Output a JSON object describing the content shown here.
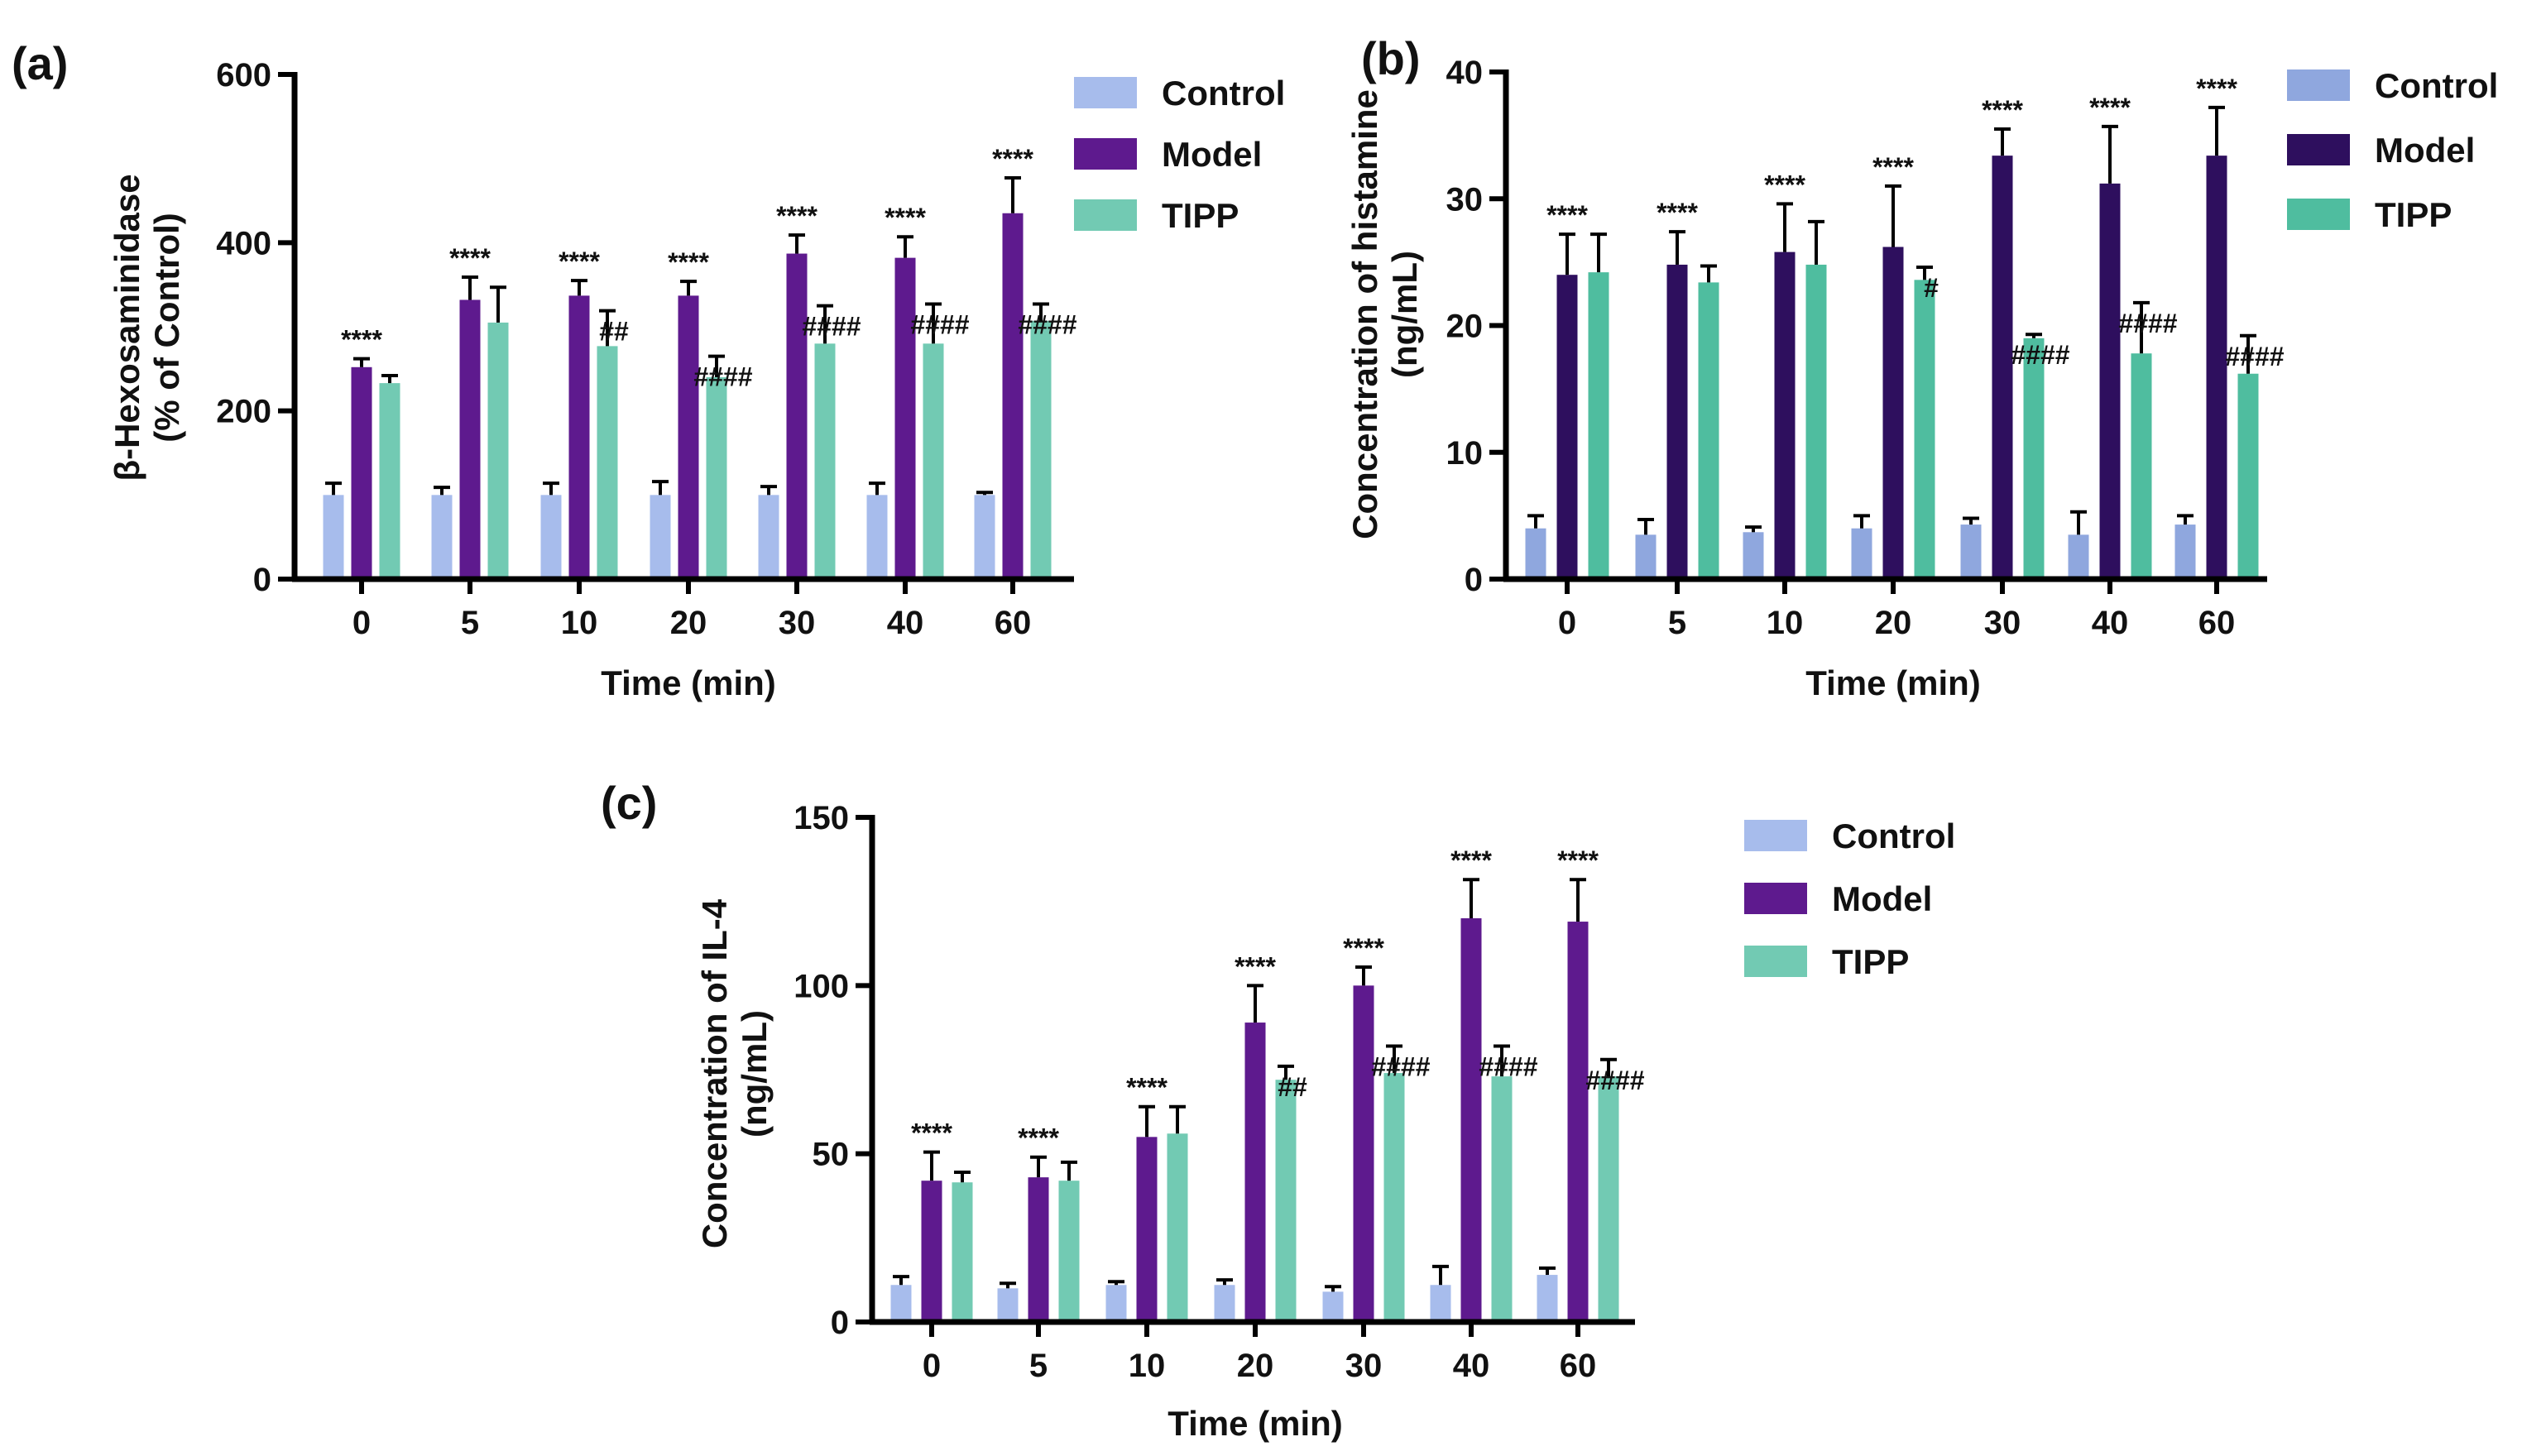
{
  "colors": {
    "panel_a": {
      "Control": "#a7bcec",
      "Model": "#5e1a8e",
      "TIPP": "#72cab3"
    },
    "panel_b": {
      "Control": "#8fa7de",
      "Model": "#2e0f5e",
      "TIPP": "#4fbd9f"
    },
    "panel_c": {
      "Control": "#a7bcec",
      "Model": "#5e1a8e",
      "TIPP": "#72cab3"
    }
  },
  "chart_data": [
    {
      "panel": "(a)",
      "type": "bar",
      "title": "",
      "xlabel": "Time (min)",
      "ylabel_lines": [
        "β-Hexosaminidase",
        "(% of Control)"
      ],
      "ylim": [
        0,
        600
      ],
      "yticks": [
        0,
        200,
        400,
        600
      ],
      "categories": [
        "0",
        "5",
        "10",
        "20",
        "30",
        "40",
        "60"
      ],
      "series": [
        {
          "name": "Control",
          "values": [
            100,
            100,
            100,
            100,
            100,
            100,
            100
          ],
          "errors": [
            14,
            9,
            14,
            16,
            10,
            14,
            3
          ]
        },
        {
          "name": "Model",
          "values": [
            252,
            332,
            337,
            337,
            387,
            382,
            435
          ],
          "errors": [
            10,
            27,
            18,
            17,
            22,
            25,
            42
          ]
        },
        {
          "name": "TIPP",
          "values": [
            233,
            305,
            277,
            240,
            280,
            280,
            307
          ],
          "errors": [
            9,
            42,
            42,
            25,
            45,
            47,
            20
          ]
        }
      ],
      "annotations": [
        {
          "category": "0",
          "series": "Model",
          "text": "****"
        },
        {
          "category": "5",
          "series": "Model",
          "text": "****"
        },
        {
          "category": "10",
          "series": "Model",
          "text": "****"
        },
        {
          "category": "10",
          "series": "TIPP",
          "text": "##"
        },
        {
          "category": "20",
          "series": "Model",
          "text": "****"
        },
        {
          "category": "20",
          "series": "TIPP",
          "text": "####"
        },
        {
          "category": "30",
          "series": "Model",
          "text": "****"
        },
        {
          "category": "30",
          "series": "TIPP",
          "text": "####"
        },
        {
          "category": "40",
          "series": "Model",
          "text": "****"
        },
        {
          "category": "40",
          "series": "TIPP",
          "text": "####"
        },
        {
          "category": "60",
          "series": "Model",
          "text": "****"
        },
        {
          "category": "60",
          "series": "TIPP",
          "text": "####"
        }
      ],
      "legend": [
        "Control",
        "Model",
        "TIPP"
      ]
    },
    {
      "panel": "(b)",
      "type": "bar",
      "title": "",
      "xlabel": "Time (min)",
      "ylabel_lines": [
        "Concentration of histamine",
        "(ng/mL)"
      ],
      "ylim": [
        0,
        40
      ],
      "yticks": [
        0,
        10,
        20,
        30,
        40
      ],
      "categories": [
        "0",
        "5",
        "10",
        "20",
        "30",
        "40",
        "60"
      ],
      "series": [
        {
          "name": "Control",
          "values": [
            4,
            3.5,
            3.7,
            4,
            4.3,
            3.5,
            4.3
          ],
          "errors": [
            1,
            1.2,
            0.4,
            1,
            0.5,
            1.8,
            0.7
          ]
        },
        {
          "name": "Model",
          "values": [
            24,
            24.8,
            25.8,
            26.2,
            33.4,
            31.2,
            33.4
          ],
          "errors": [
            3.2,
            2.6,
            3.8,
            4.8,
            2.1,
            4.5,
            3.8
          ]
        },
        {
          "name": "TIPP",
          "values": [
            24.2,
            23.4,
            24.8,
            23.6,
            19,
            17.8,
            16.2
          ],
          "errors": [
            3,
            1.3,
            3.4,
            1,
            0.3,
            4,
            3
          ]
        }
      ],
      "annotations": [
        {
          "category": "0",
          "series": "Model",
          "text": "****"
        },
        {
          "category": "5",
          "series": "Model",
          "text": "****"
        },
        {
          "category": "10",
          "series": "Model",
          "text": "****"
        },
        {
          "category": "20",
          "series": "Model",
          "text": "****"
        },
        {
          "category": "20",
          "series": "TIPP",
          "text": "#"
        },
        {
          "category": "30",
          "series": "Model",
          "text": "****"
        },
        {
          "category": "30",
          "series": "TIPP",
          "text": "####"
        },
        {
          "category": "40",
          "series": "Model",
          "text": "****"
        },
        {
          "category": "40",
          "series": "TIPP",
          "text": "####"
        },
        {
          "category": "60",
          "series": "Model",
          "text": "****"
        },
        {
          "category": "60",
          "series": "TIPP",
          "text": "####"
        }
      ],
      "legend": [
        "Control",
        "Model",
        "TIPP"
      ]
    },
    {
      "panel": "(c)",
      "type": "bar",
      "title": "",
      "xlabel": "Time (min)",
      "ylabel_lines": [
        "Concentration of IL-4",
        "(ng/mL)"
      ],
      "ylim": [
        0,
        150
      ],
      "yticks": [
        0,
        50,
        100,
        150
      ],
      "categories": [
        "0",
        "5",
        "10",
        "20",
        "30",
        "40",
        "60"
      ],
      "series": [
        {
          "name": "Control",
          "values": [
            11,
            10,
            11,
            11,
            9,
            11,
            14
          ],
          "errors": [
            2.5,
            1.5,
            1,
            1.5,
            1.5,
            5.5,
            2
          ]
        },
        {
          "name": "Model",
          "values": [
            42,
            43,
            55,
            89,
            100,
            120,
            119
          ],
          "errors": [
            8.5,
            6,
            9,
            11,
            5.5,
            11.5,
            12.5
          ]
        },
        {
          "name": "TIPP",
          "values": [
            41.5,
            42,
            56,
            72,
            74,
            73,
            73
          ],
          "errors": [
            3,
            5.5,
            8,
            4,
            8,
            9,
            5
          ]
        }
      ],
      "annotations": [
        {
          "category": "0",
          "series": "Model",
          "text": "****"
        },
        {
          "category": "5",
          "series": "Model",
          "text": "****"
        },
        {
          "category": "10",
          "series": "Model",
          "text": "****"
        },
        {
          "category": "20",
          "series": "Model",
          "text": "****"
        },
        {
          "category": "20",
          "series": "TIPP",
          "text": "##"
        },
        {
          "category": "30",
          "series": "Model",
          "text": "****"
        },
        {
          "category": "30",
          "series": "TIPP",
          "text": "####"
        },
        {
          "category": "40",
          "series": "Model",
          "text": "****"
        },
        {
          "category": "40",
          "series": "TIPP",
          "text": "####"
        },
        {
          "category": "60",
          "series": "Model",
          "text": "****"
        },
        {
          "category": "60",
          "series": "TIPP",
          "text": "####"
        }
      ],
      "legend": [
        "Control",
        "Model",
        "TIPP"
      ]
    }
  ]
}
